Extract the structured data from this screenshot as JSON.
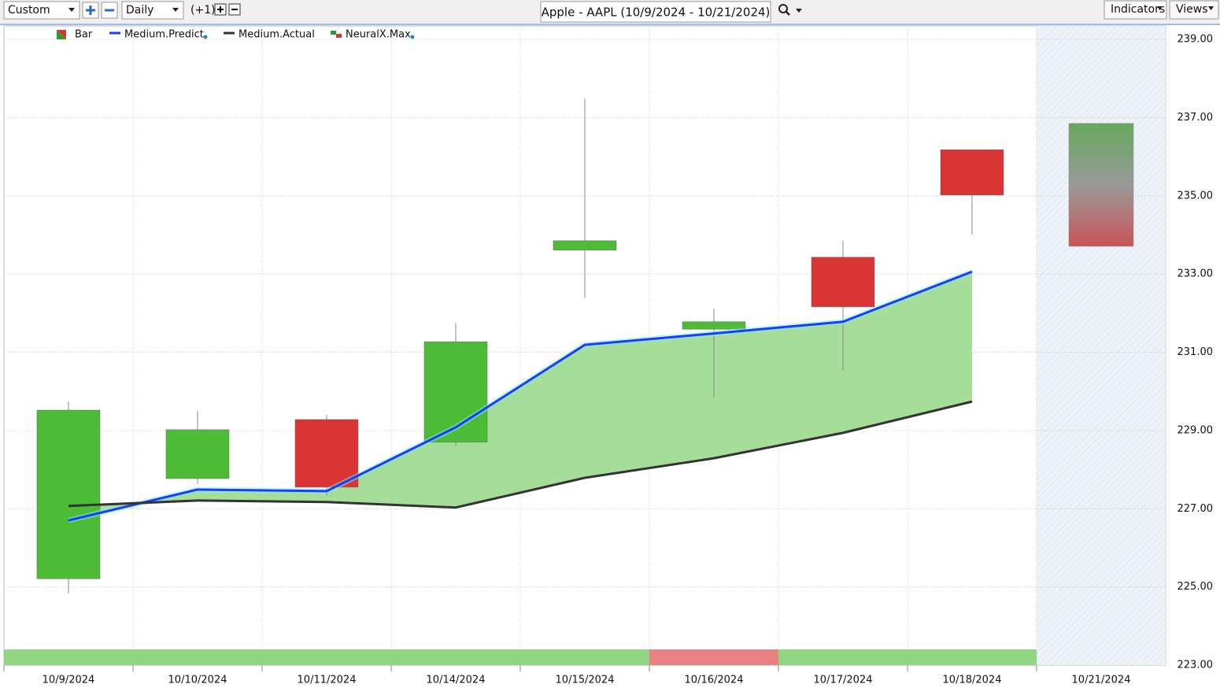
{
  "toolbar": {
    "layout": "Custom",
    "interval": "Daily",
    "offset": "(+1)",
    "indicators": "Indicators",
    "views": "Views"
  },
  "chart_data": {
    "type": "candlestick",
    "title": "Apple - AAPL (10/9/2024 - 10/21/2024)",
    "categories": [
      "10/9/2024",
      "10/10/2024",
      "10/11/2024",
      "10/14/2024",
      "10/15/2024",
      "10/16/2024",
      "10/17/2024",
      "10/18/2024",
      "10/21/2024"
    ],
    "candles": {
      "name": "Bar",
      "up_color": "#4cbb35",
      "down_color": "#d93535",
      "open": [
        225.21,
        227.77,
        229.28,
        228.7,
        233.61,
        231.59,
        233.43,
        236.18,
        null
      ],
      "high": [
        229.74,
        229.5,
        229.4,
        231.74,
        237.49,
        232.12,
        233.85,
        236.18,
        null
      ],
      "low": [
        224.83,
        227.63,
        227.33,
        228.6,
        232.38,
        229.84,
        230.53,
        234.01,
        null
      ],
      "close": [
        229.52,
        229.02,
        227.55,
        231.27,
        233.85,
        231.78,
        232.16,
        235.02,
        null
      ]
    },
    "series": [
      {
        "name": "Medium.Predict",
        "color": "#1a3cff",
        "values": [
          226.7,
          227.49,
          227.45,
          229.08,
          231.19,
          231.48,
          231.78,
          233.06,
          null
        ]
      },
      {
        "name": "Medium.Actual",
        "color": "#333333",
        "values": [
          227.07,
          227.21,
          227.17,
          227.03,
          227.79,
          228.29,
          228.94,
          229.74,
          null
        ]
      }
    ],
    "forecast": {
      "name": "NeuralX.Max",
      "category_index": 8,
      "high": 236.85,
      "low": 233.71
    },
    "band_color": "#a6dd98",
    "signal_colors": [
      "#92d683",
      "#92d683",
      "#92d683",
      "#92d683",
      "#92d683",
      "#e88282",
      "#92d683",
      "#92d683",
      null
    ],
    "ylim": [
      223,
      239
    ],
    "yticks": [
      {
        "value": 223,
        "label": "223.00"
      },
      {
        "value": 225,
        "label": "225.00"
      },
      {
        "value": 227,
        "label": "227.00"
      },
      {
        "value": 229,
        "label": "229.00"
      },
      {
        "value": 231,
        "label": "231.00"
      },
      {
        "value": 233,
        "label": "233.00"
      },
      {
        "value": 235,
        "label": "235.00"
      },
      {
        "value": 237,
        "label": "237.00"
      },
      {
        "value": 239,
        "label": "239.00"
      }
    ],
    "grid": true
  }
}
